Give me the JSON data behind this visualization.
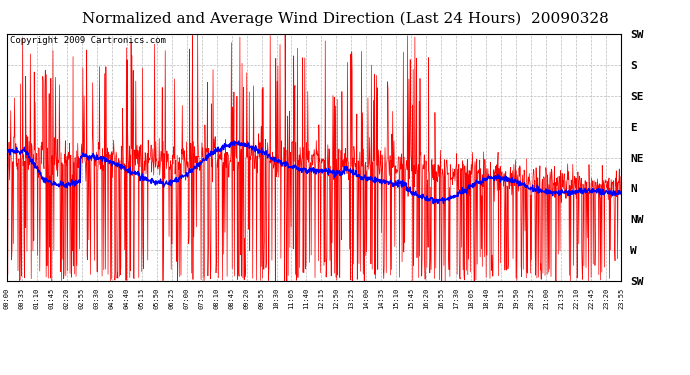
{
  "title": "Normalized and Average Wind Direction (Last 24 Hours)  20090328",
  "copyright": "Copyright 2009 Cartronics.com",
  "y_labels": [
    "SW",
    "S",
    "SE",
    "E",
    "NE",
    "N",
    "NW",
    "W",
    "SW"
  ],
  "y_ticks": [
    8,
    7,
    6,
    5,
    4,
    3,
    2,
    1,
    0
  ],
  "x_tick_labels": [
    "00:00",
    "00:35",
    "01:10",
    "01:45",
    "02:20",
    "02:55",
    "03:30",
    "04:05",
    "04:40",
    "05:15",
    "05:50",
    "06:25",
    "07:00",
    "07:35",
    "08:10",
    "08:45",
    "09:20",
    "09:55",
    "10:30",
    "11:05",
    "11:40",
    "12:15",
    "12:50",
    "13:25",
    "14:00",
    "14:35",
    "15:10",
    "15:45",
    "16:20",
    "16:55",
    "17:30",
    "18:05",
    "18:40",
    "19:15",
    "19:50",
    "20:25",
    "21:00",
    "21:35",
    "22:10",
    "22:45",
    "23:20",
    "23:55"
  ],
  "red_line_color": "#ff0000",
  "blue_line_color": "#0000ff",
  "background_color": "#ffffff",
  "grid_color": "#bbbbbb",
  "title_fontsize": 11,
  "copyright_fontsize": 6.5,
  "seed": 123
}
